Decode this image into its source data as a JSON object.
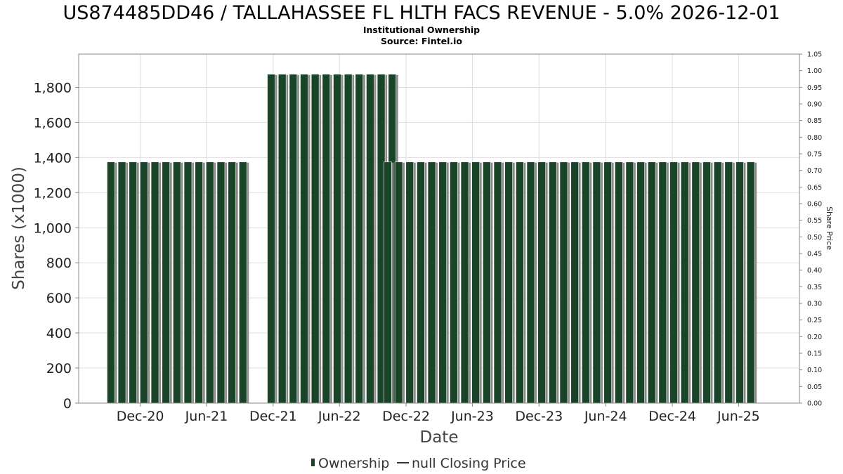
{
  "chart_data": {
    "type": "bar",
    "title": "US874485DD46 / TALLAHASSEE FL HLTH FACS REVENUE - 5.0% 2026-12-01",
    "subtitle_1": "Institutional Ownership",
    "subtitle_2": "Source: Fintel.io",
    "xlabel": "Date",
    "ylabel": "Shares (x1000)",
    "y2label": "Share Price",
    "ylim": [
      0,
      1990
    ],
    "y2lim": [
      0,
      1.05
    ],
    "grid": true,
    "legend_position": "bottom-center",
    "y_ticks": [
      0,
      200,
      400,
      600,
      800,
      1000,
      1200,
      1400,
      1600,
      1800
    ],
    "y_tick_labels": [
      "0",
      "200",
      "400",
      "600",
      "800",
      "1,000",
      "1,200",
      "1,400",
      "1,600",
      "1,800"
    ],
    "y2_tick_labels": [
      "0.00",
      "0.05",
      "0.10",
      "0.15",
      "0.20",
      "0.25",
      "0.30",
      "0.35",
      "0.40",
      "0.45",
      "0.50",
      "0.55",
      "0.60",
      "0.65",
      "0.70",
      "0.75",
      "0.80",
      "0.85",
      "0.90",
      "0.95",
      "1.00",
      "1.05"
    ],
    "x_tick_labels": [
      "Dec-20",
      "Jun-21",
      "Dec-21",
      "Jun-22",
      "Dec-22",
      "Jun-23",
      "Dec-23",
      "Jun-24",
      "Dec-24",
      "Jun-25"
    ],
    "x_tick_dates": [
      "2020-12-01",
      "2021-06-01",
      "2021-12-01",
      "2022-06-01",
      "2022-12-01",
      "2023-06-01",
      "2023-12-01",
      "2024-06-01",
      "2024-12-01",
      "2025-06-01"
    ],
    "x_range": [
      "2020-06-15",
      "2025-11-15"
    ],
    "series": [
      {
        "name": "Ownership",
        "color": "#1a4427",
        "shadow_color": "#8a8a8a",
        "segments": [
          {
            "start": "2020-09-01",
            "count": 13,
            "value": 1375
          },
          {
            "start": "2021-11-15",
            "count": 12,
            "value": 1875
          },
          {
            "start": "2022-10-01",
            "count": 34,
            "value": 1375
          }
        ],
        "bar_step_days": 30.2
      },
      {
        "name": "null Closing Price",
        "color": "#333333",
        "values": []
      }
    ]
  },
  "legend": {
    "ownership_label": "Ownership",
    "price_label": "null Closing Price"
  }
}
